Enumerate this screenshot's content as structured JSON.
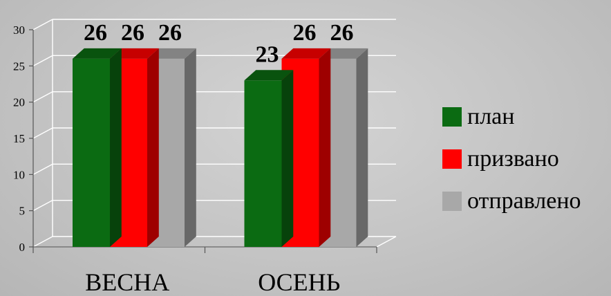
{
  "chart_data": {
    "type": "bar",
    "categories": [
      "ВЕСНА",
      "ОСЕНЬ"
    ],
    "series": [
      {
        "name": "план",
        "values": [
          26,
          23
        ],
        "color": "#0b6b12"
      },
      {
        "name": "призвано",
        "values": [
          26,
          26
        ],
        "color": "#ff0000"
      },
      {
        "name": "отправлено",
        "values": [
          26,
          26
        ],
        "color": "#a8a8a8"
      }
    ],
    "ylim": [
      0,
      30
    ],
    "yticks": [
      0,
      5,
      10,
      15,
      20,
      25,
      30
    ],
    "grid": true,
    "legend_position": "right",
    "data_labels": true,
    "style": "3d-column"
  },
  "legend": [
    {
      "label": "план",
      "color": "#0b6b12"
    },
    {
      "label": "призвано",
      "color": "#ff0000"
    },
    {
      "label": "отправлено",
      "color": "#a8a8a8"
    }
  ]
}
